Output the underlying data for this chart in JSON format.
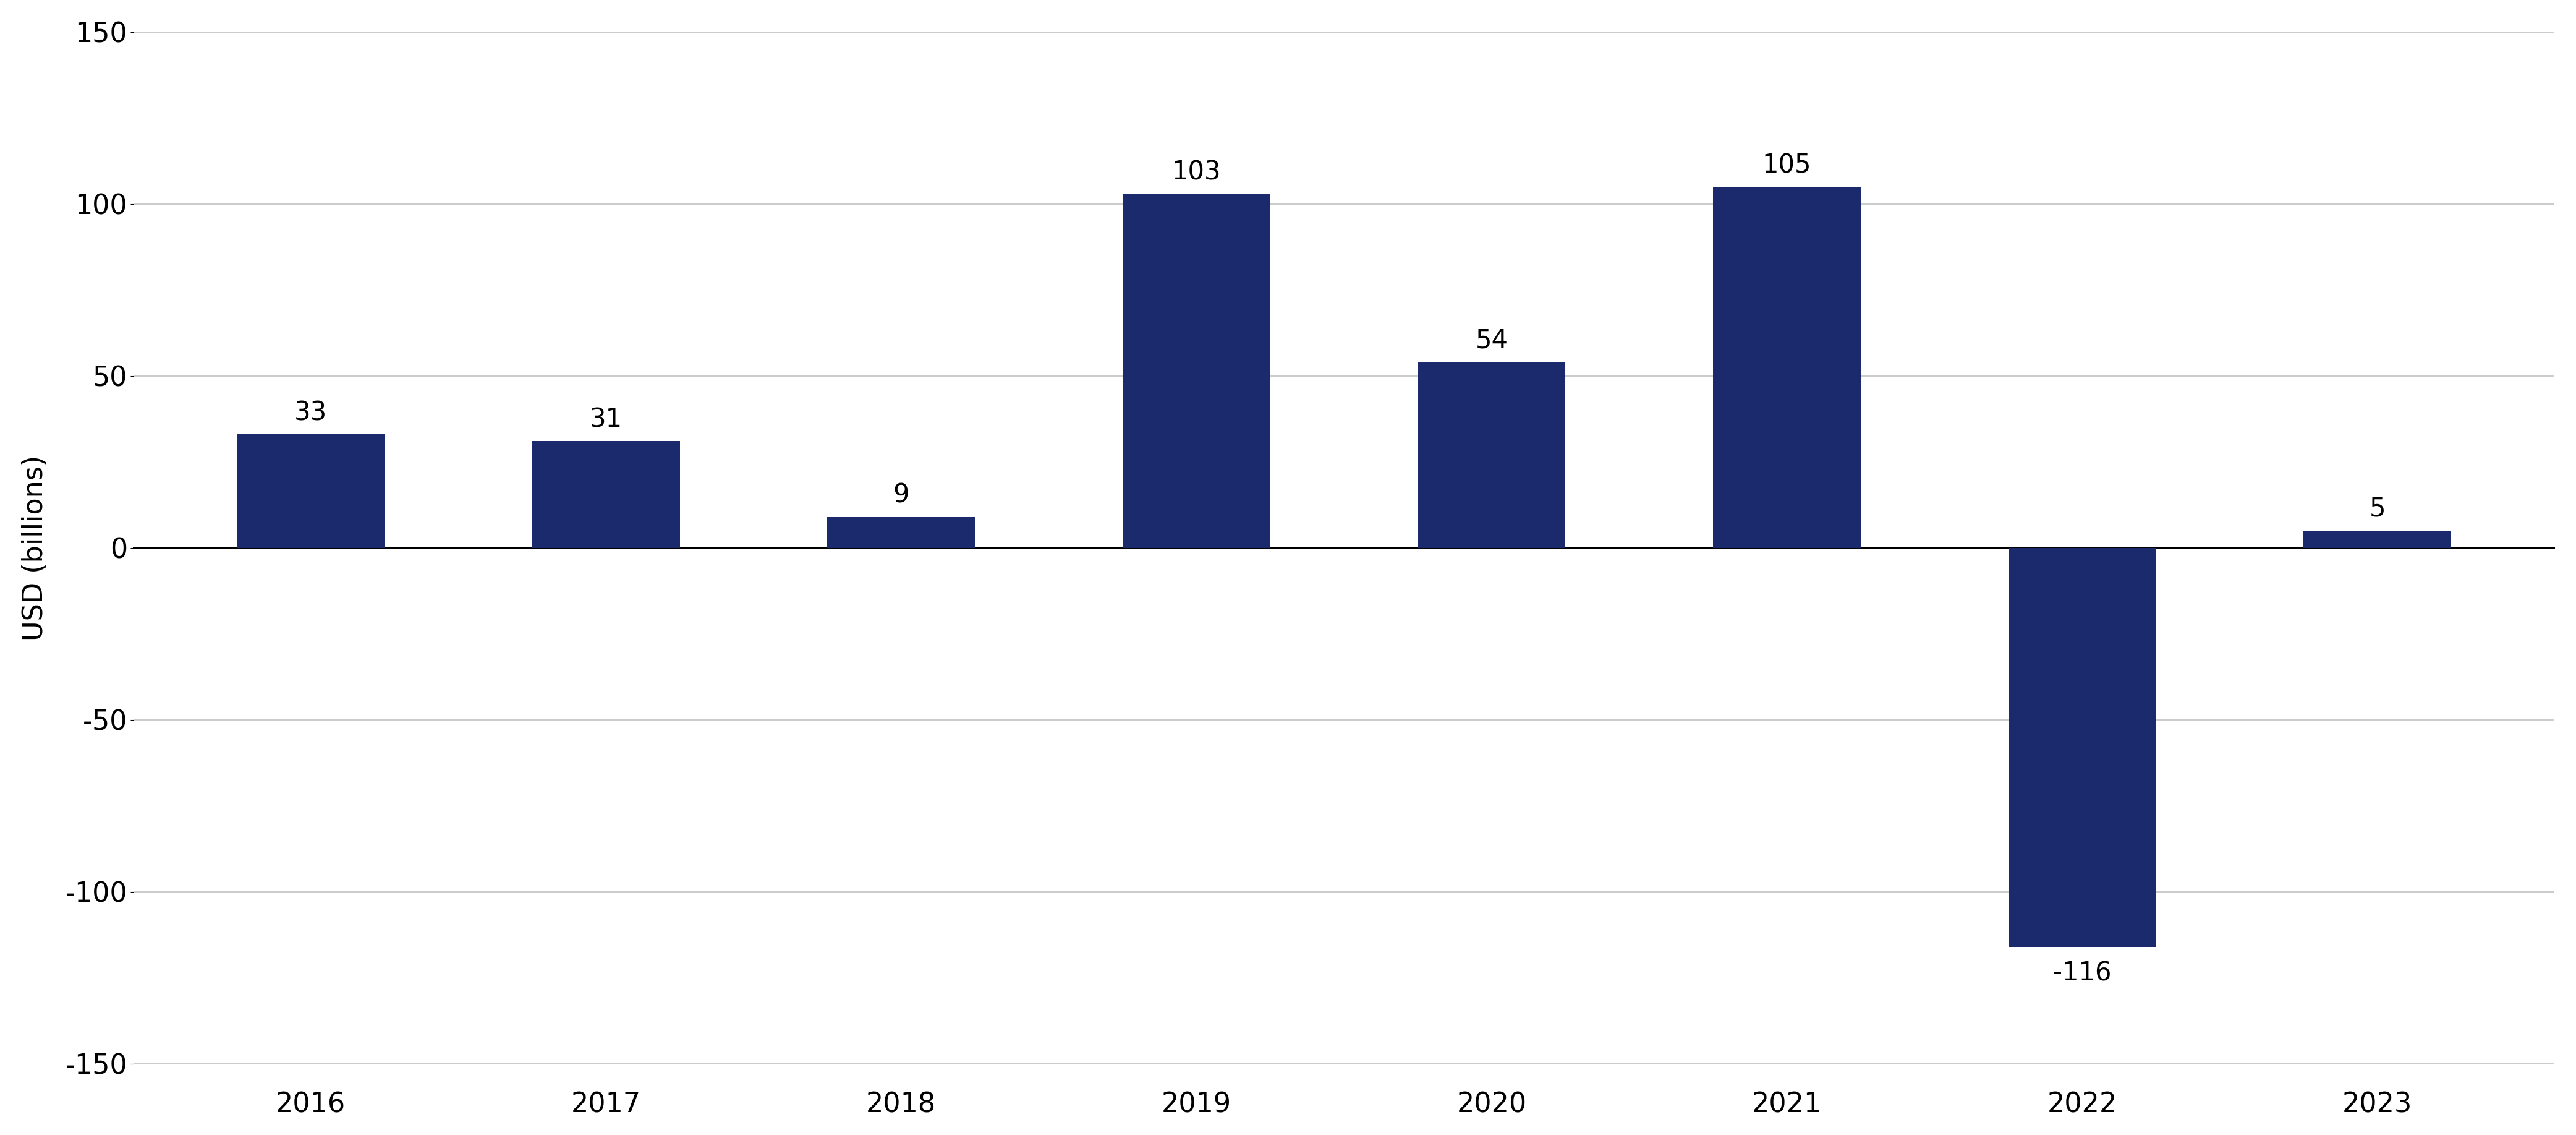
{
  "categories": [
    "2016",
    "2017",
    "2018",
    "2019",
    "2020",
    "2021",
    "2022",
    "2023"
  ],
  "values": [
    33,
    31,
    9,
    103,
    54,
    105,
    -116,
    5
  ],
  "bar_color": "#1a2a6c",
  "ylabel": "USD (billions)",
  "ylim": [
    -150,
    150
  ],
  "yticks": [
    -150,
    -100,
    -50,
    0,
    50,
    100,
    150
  ],
  "background_color": "#ffffff",
  "grid_color": "#cccccc",
  "label_fontsize": 32,
  "tick_fontsize": 32,
  "bar_label_fontsize": 30
}
